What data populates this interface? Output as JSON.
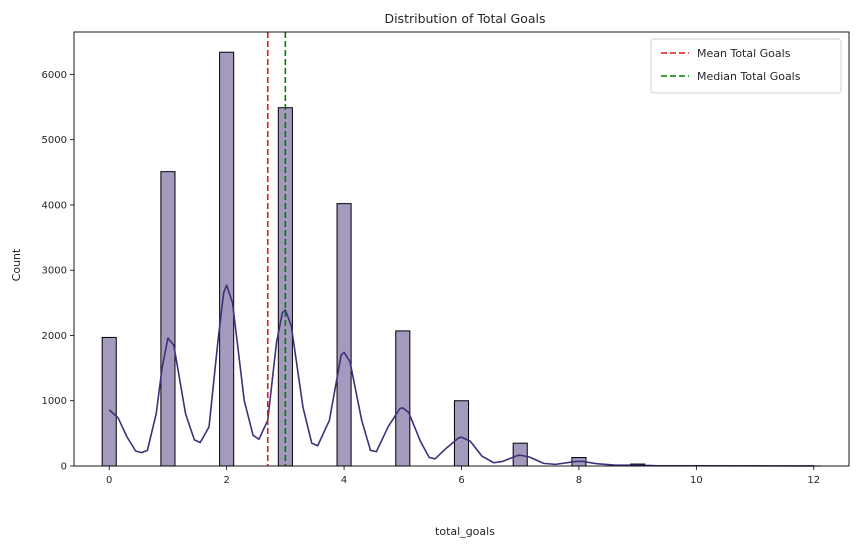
{
  "chart_data": {
    "type": "histogram",
    "title": "Distribution of Total Goals",
    "xlabel": "total_goals",
    "ylabel": "Count",
    "xlim": [
      -0.6,
      12.6
    ],
    "ylim": [
      0,
      6650
    ],
    "xticks": [
      0,
      2,
      4,
      6,
      8,
      10,
      12
    ],
    "yticks": [
      0,
      1000,
      2000,
      3000,
      4000,
      5000,
      6000
    ],
    "bin_width": 0.24,
    "bars": [
      {
        "x": 0,
        "count": 1970
      },
      {
        "x": 1,
        "count": 4510
      },
      {
        "x": 2,
        "count": 6340
      },
      {
        "x": 3,
        "count": 5490
      },
      {
        "x": 4,
        "count": 4020
      },
      {
        "x": 5,
        "count": 2070
      },
      {
        "x": 6,
        "count": 1000
      },
      {
        "x": 7,
        "count": 350
      },
      {
        "x": 8,
        "count": 130
      },
      {
        "x": 9,
        "count": 30
      },
      {
        "x": 10,
        "count": 8
      },
      {
        "x": 11,
        "count": 3
      },
      {
        "x": 12,
        "count": 1
      }
    ],
    "kde": [
      [
        0,
        860
      ],
      [
        0.15,
        740
      ],
      [
        0.3,
        450
      ],
      [
        0.45,
        230
      ],
      [
        0.55,
        205
      ],
      [
        0.65,
        240
      ],
      [
        0.8,
        800
      ],
      [
        0.9,
        1500
      ],
      [
        1,
        1960
      ],
      [
        1.1,
        1850
      ],
      [
        1.3,
        800
      ],
      [
        1.45,
        400
      ],
      [
        1.55,
        360
      ],
      [
        1.7,
        600
      ],
      [
        1.85,
        1900
      ],
      [
        1.95,
        2660
      ],
      [
        2,
        2770
      ],
      [
        2.1,
        2500
      ],
      [
        2.3,
        1000
      ],
      [
        2.45,
        470
      ],
      [
        2.55,
        410
      ],
      [
        2.7,
        700
      ],
      [
        2.85,
        1900
      ],
      [
        2.95,
        2350
      ],
      [
        3,
        2390
      ],
      [
        3.1,
        2150
      ],
      [
        3.3,
        900
      ],
      [
        3.45,
        350
      ],
      [
        3.55,
        310
      ],
      [
        3.75,
        700
      ],
      [
        3.95,
        1700
      ],
      [
        4,
        1740
      ],
      [
        4.1,
        1600
      ],
      [
        4.3,
        700
      ],
      [
        4.45,
        240
      ],
      [
        4.55,
        220
      ],
      [
        4.75,
        600
      ],
      [
        4.95,
        880
      ],
      [
        5,
        890
      ],
      [
        5.1,
        820
      ],
      [
        5.3,
        380
      ],
      [
        5.45,
        130
      ],
      [
        5.55,
        110
      ],
      [
        5.75,
        280
      ],
      [
        5.95,
        430
      ],
      [
        6,
        440
      ],
      [
        6.15,
        380
      ],
      [
        6.35,
        150
      ],
      [
        6.55,
        50
      ],
      [
        6.7,
        70
      ],
      [
        6.95,
        160
      ],
      [
        7,
        165
      ],
      [
        7.15,
        140
      ],
      [
        7.4,
        40
      ],
      [
        7.6,
        25
      ],
      [
        7.95,
        70
      ],
      [
        8.05,
        72
      ],
      [
        8.3,
        35
      ],
      [
        8.6,
        15
      ],
      [
        9,
        12
      ],
      [
        9.3,
        5
      ],
      [
        10,
        4
      ],
      [
        11,
        2
      ],
      [
        12,
        1
      ]
    ],
    "mean": 2.7,
    "median": 3,
    "legend_position": "top-right",
    "legend": [
      {
        "label": "Mean Total Goals",
        "color": "#e41a1c",
        "style": "dashed"
      },
      {
        "label": "Median Total Goals",
        "color": "#008000",
        "style": "dashed"
      }
    ],
    "colors": {
      "bar_fill": "#a39abe",
      "bar_edge": "#000000",
      "kde_line": "#3f307a",
      "mean_line": "#e41a1c",
      "median_line": "#008000"
    }
  }
}
